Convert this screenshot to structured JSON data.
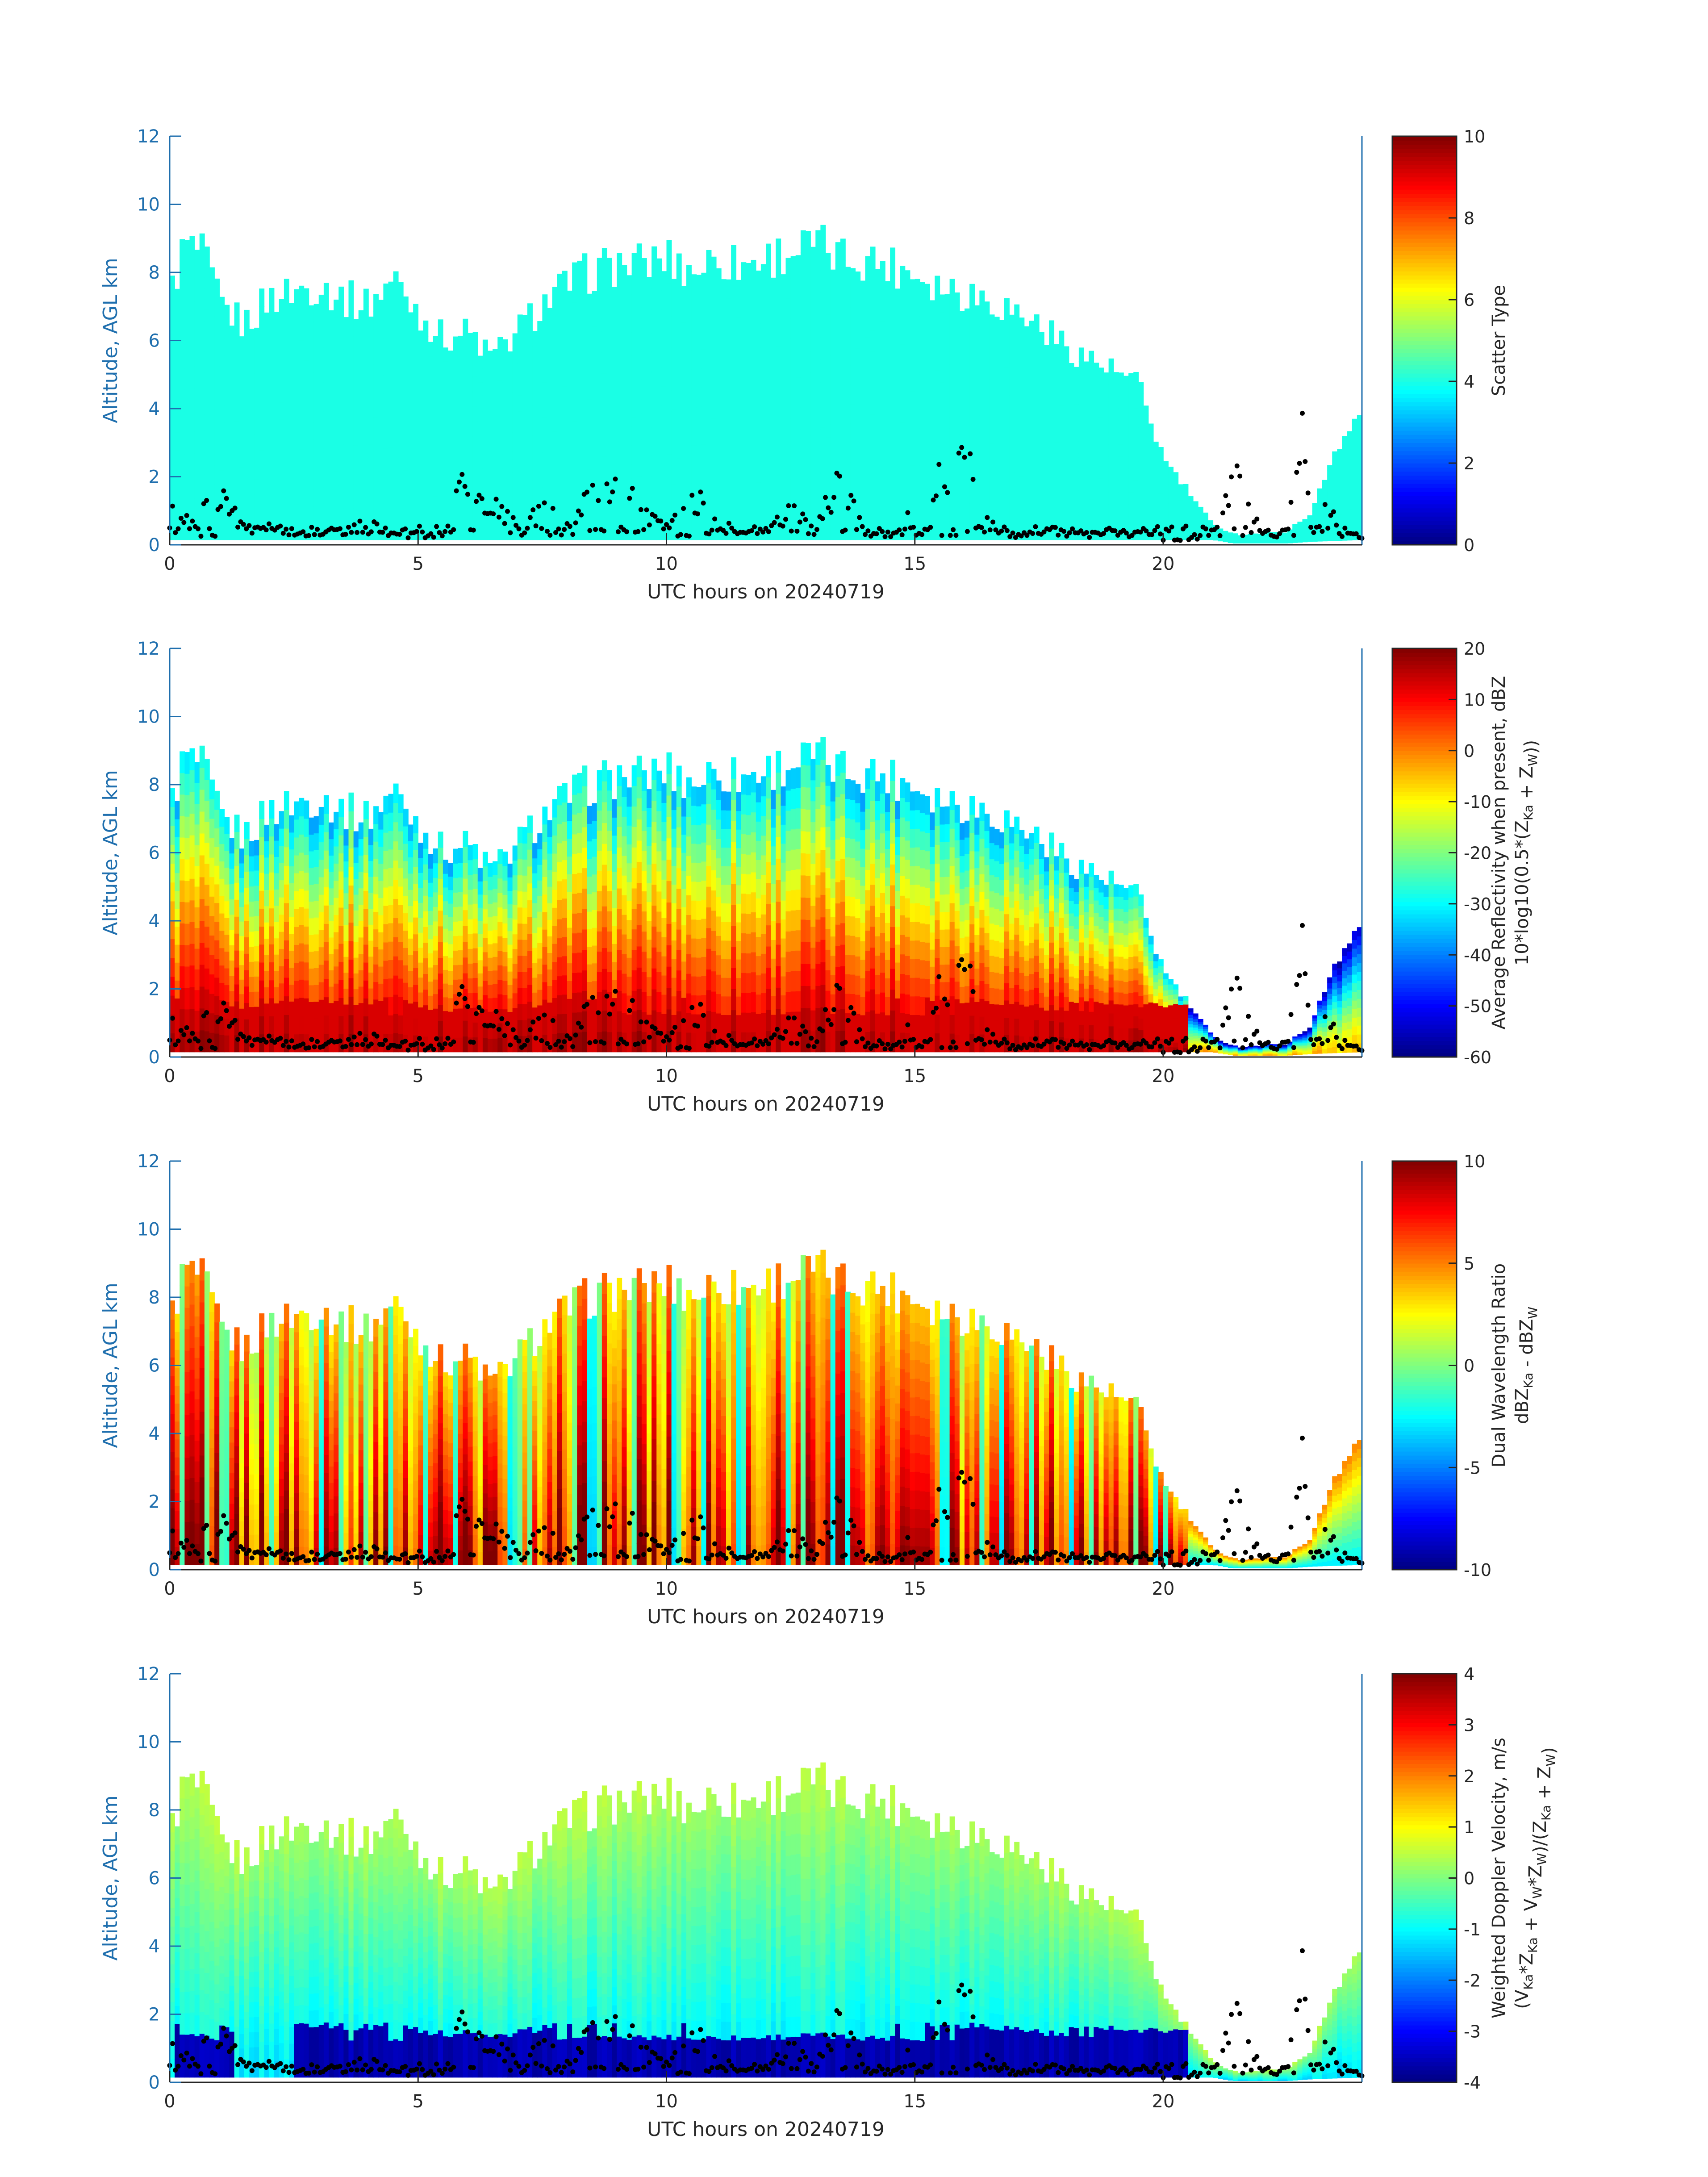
{
  "chart_data": [
    {
      "type": "heatmap",
      "id": "scatter",
      "xlabel": "UTC hours on 20240719",
      "ylabel": "Altitude, AGL km",
      "xlim": [
        0,
        24
      ],
      "ylim": [
        0,
        12
      ],
      "x_ticks": [
        0,
        5,
        10,
        15,
        20
      ],
      "y_ticks": [
        0,
        2,
        4,
        6,
        8,
        10,
        12
      ],
      "colorbar": {
        "label_lines": [
          "Scatter Type"
        ],
        "range": [
          0,
          10
        ],
        "ticks": [
          0,
          2,
          4,
          6,
          8,
          10
        ],
        "colormap": "jet"
      },
      "field": "uniform",
      "field_value": 4,
      "cloud_tops_km": [
        [
          0.0,
          7.4
        ],
        [
          0.3,
          9.0
        ],
        [
          0.7,
          8.6
        ],
        [
          1.0,
          7.2
        ],
        [
          1.5,
          6.6
        ],
        [
          2.0,
          7.4
        ],
        [
          2.5,
          7.6
        ],
        [
          3.0,
          7.8
        ],
        [
          3.5,
          7.4
        ],
        [
          4.0,
          7.2
        ],
        [
          4.5,
          8.0
        ],
        [
          5.0,
          7.0
        ],
        [
          5.5,
          6.2
        ],
        [
          6.0,
          6.4
        ],
        [
          6.5,
          5.6
        ],
        [
          7.0,
          6.4
        ],
        [
          7.5,
          7.2
        ],
        [
          8.0,
          7.8
        ],
        [
          8.5,
          8.2
        ],
        [
          9.0,
          8.4
        ],
        [
          9.5,
          8.4
        ],
        [
          10.0,
          8.6
        ],
        [
          10.5,
          8.2
        ],
        [
          11.0,
          8.6
        ],
        [
          11.5,
          8.4
        ],
        [
          12.0,
          8.6
        ],
        [
          12.5,
          8.8
        ],
        [
          13.0,
          9.0
        ],
        [
          13.5,
          8.6
        ],
        [
          14.0,
          8.6
        ],
        [
          14.5,
          8.4
        ],
        [
          15.0,
          8.2
        ],
        [
          15.5,
          7.8
        ],
        [
          16.0,
          7.6
        ],
        [
          16.5,
          7.4
        ],
        [
          17.0,
          7.0
        ],
        [
          17.5,
          6.6
        ],
        [
          18.0,
          6.0
        ],
        [
          18.5,
          5.6
        ],
        [
          19.0,
          5.2
        ],
        [
          19.5,
          4.8
        ],
        [
          20.0,
          2.6
        ],
        [
          20.5,
          1.6
        ],
        [
          21.0,
          0.6
        ],
        [
          21.5,
          0.3
        ],
        [
          22.0,
          0.35
        ],
        [
          22.5,
          0.4
        ],
        [
          23.0,
          1.0
        ],
        [
          23.5,
          3.0
        ],
        [
          24.0,
          4.0
        ]
      ],
      "cloud_bases_km": [
        [
          0.0,
          0.15
        ],
        [
          21.0,
          0.15
        ],
        [
          21.4,
          0.05
        ],
        [
          22.5,
          0.05
        ],
        [
          23.0,
          0.1
        ],
        [
          24.0,
          0.15
        ]
      ],
      "ceilometer_km": [
        [
          0.0,
          1.4
        ],
        [
          0.5,
          0.6
        ],
        [
          1.0,
          1.5
        ],
        [
          1.5,
          0.5
        ],
        [
          2.0,
          0.6
        ],
        [
          2.5,
          0.4
        ],
        [
          3.0,
          0.3
        ],
        [
          3.5,
          0.5
        ],
        [
          4.0,
          0.6
        ],
        [
          4.5,
          0.4
        ],
        [
          5.0,
          0.3
        ],
        [
          5.5,
          0.4
        ],
        [
          6.0,
          2.0
        ],
        [
          6.5,
          1.2
        ],
        [
          7.0,
          0.5
        ],
        [
          7.5,
          1.0
        ],
        [
          8.0,
          0.6
        ],
        [
          8.5,
          1.4
        ],
        [
          9.0,
          2.2
        ],
        [
          9.5,
          1.0
        ],
        [
          10.0,
          0.5
        ],
        [
          10.5,
          1.6
        ],
        [
          11.0,
          0.6
        ],
        [
          11.5,
          0.4
        ],
        [
          12.0,
          0.5
        ],
        [
          12.5,
          1.2
        ],
        [
          13.0,
          0.7
        ],
        [
          13.5,
          1.8
        ],
        [
          14.0,
          0.5
        ],
        [
          14.5,
          0.3
        ],
        [
          15.0,
          1.2
        ],
        [
          15.5,
          2.0
        ],
        [
          16.0,
          2.6
        ],
        [
          16.5,
          0.8
        ],
        [
          17.0,
          0.3
        ],
        [
          17.5,
          0.5
        ],
        [
          18.0,
          0.4
        ],
        [
          18.5,
          0.3
        ],
        [
          19.0,
          0.4
        ],
        [
          19.5,
          0.3
        ],
        [
          20.0,
          0.2
        ],
        [
          20.5,
          0.2
        ],
        [
          21.0,
          0.3
        ],
        [
          21.5,
          2.3
        ],
        [
          22.0,
          0.2
        ],
        [
          22.5,
          0.25
        ],
        [
          22.8,
          3.4
        ],
        [
          23.0,
          0.3
        ],
        [
          23.3,
          1.5
        ],
        [
          23.6,
          0.25
        ],
        [
          24.0,
          0.3
        ]
      ],
      "annotations": []
    },
    {
      "type": "heatmap",
      "id": "reflectivity",
      "xlabel": "UTC hours on 20240719",
      "ylabel": "Altitude, AGL km",
      "xlim": [
        0,
        24
      ],
      "ylim": [
        0,
        12
      ],
      "x_ticks": [
        0,
        5,
        10,
        15,
        20
      ],
      "y_ticks": [
        0,
        2,
        4,
        6,
        8,
        10,
        12
      ],
      "colorbar": {
        "label_lines": [
          "Average Reflectivity when present, dBZ",
          "10*log10(0.5*(Z_Ka + Z_W))"
        ],
        "range": [
          -60,
          20
        ],
        "ticks": [
          -60,
          -50,
          -40,
          -30,
          -20,
          -10,
          0,
          10,
          20
        ],
        "colormap": "jet"
      },
      "field": "reflectivity",
      "field_params": {
        "base_value": 15,
        "top_value": -35,
        "bright_band_km": 1.5
      },
      "note": "same cloud mask as Scatter Type panel"
    },
    {
      "type": "heatmap",
      "id": "dwr",
      "xlabel": "UTC hours on 20240719",
      "ylabel": "Altitude, AGL km",
      "xlim": [
        0,
        24
      ],
      "ylim": [
        0,
        12
      ],
      "x_ticks": [
        0,
        5,
        10,
        15,
        20
      ],
      "y_ticks": [
        0,
        2,
        4,
        6,
        8,
        10,
        12
      ],
      "colorbar": {
        "label_lines": [
          "Dual Wavelength Ratio",
          "dBZ_Ka - dBZ_W"
        ],
        "range": [
          -10,
          10
        ],
        "ticks": [
          -10,
          -5,
          0,
          5,
          10
        ],
        "colormap": "jet"
      },
      "field": "dwr",
      "field_params": {
        "high_value": 10,
        "mid_value": 5,
        "low_value": -2
      },
      "note": "same cloud mask as Scatter Type panel"
    },
    {
      "type": "heatmap",
      "id": "doppler",
      "xlabel": "UTC hours on 20240719",
      "ylabel": "Altitude, AGL km",
      "xlim": [
        0,
        24
      ],
      "ylim": [
        0,
        12
      ],
      "x_ticks": [
        0,
        5,
        10,
        15,
        20
      ],
      "y_ticks": [
        0,
        2,
        4,
        6,
        8,
        10,
        12
      ],
      "colorbar": {
        "label_lines": [
          "Weighted Doppler Velocity, m/s",
          "(V_Ka*Z_Ka + V_W*Z_W)/(Z_Ka + Z_W)"
        ],
        "range": [
          -4,
          4
        ],
        "ticks": [
          -4,
          -3,
          -2,
          -1,
          0,
          1,
          2,
          3,
          4
        ],
        "colormap": "jet"
      },
      "field": "doppler",
      "field_params": {
        "rain_value": -3.8,
        "rain_top_km": 1.5,
        "ice_value": -1.2,
        "top_value": 0.3
      },
      "note": "same cloud mask as Scatter Type panel"
    }
  ]
}
